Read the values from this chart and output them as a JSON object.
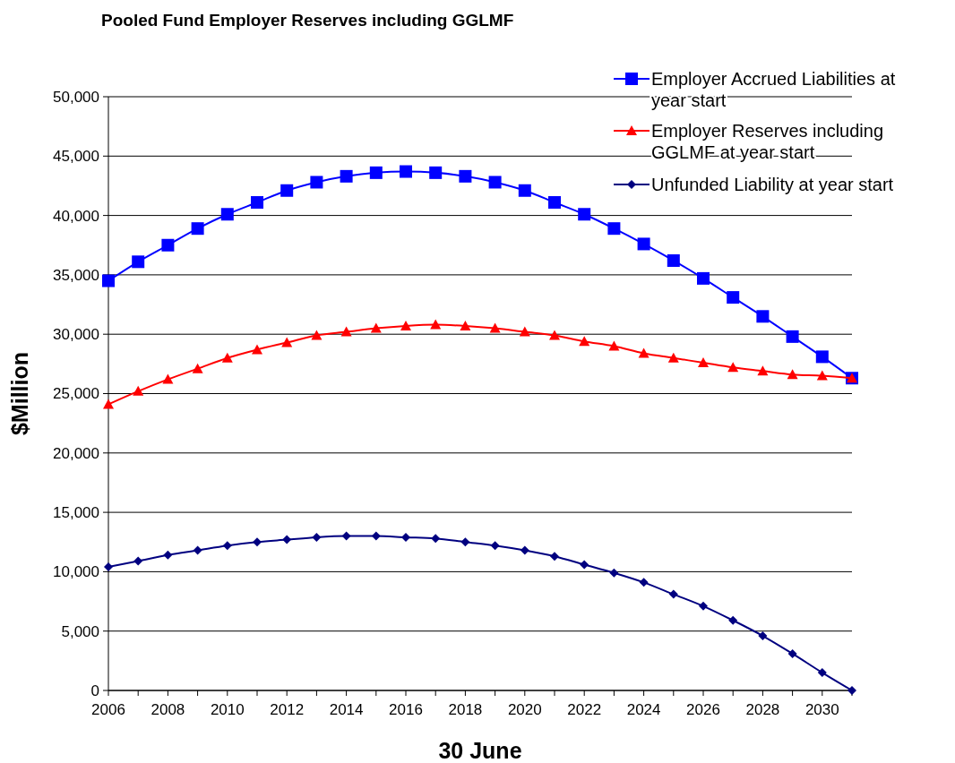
{
  "chart_data": {
    "type": "line",
    "title": "Pooled Fund Employer Reserves including GGLMF",
    "xlabel": "30 June",
    "ylabel": "$Million",
    "x": [
      2006,
      2007,
      2008,
      2009,
      2010,
      2011,
      2012,
      2013,
      2014,
      2015,
      2016,
      2017,
      2018,
      2019,
      2020,
      2021,
      2022,
      2023,
      2024,
      2025,
      2026,
      2027,
      2028,
      2029,
      2030,
      2031
    ],
    "series": [
      {
        "name": "Employer Accrued Liabilities at year start",
        "color": "#0000ff",
        "marker": "square",
        "values": [
          34500,
          36100,
          37500,
          38900,
          40100,
          41100,
          42100,
          42800,
          43300,
          43600,
          43700,
          43600,
          43300,
          42800,
          42100,
          41100,
          40100,
          38900,
          37600,
          36200,
          34700,
          33100,
          31500,
          29800,
          28100,
          26300
        ]
      },
      {
        "name": "Employer Reserves including GGLMF at year start",
        "color": "#ff0000",
        "marker": "triangle",
        "values": [
          24100,
          25200,
          26200,
          27100,
          28000,
          28700,
          29300,
          29900,
          30200,
          30500,
          30700,
          30800,
          30700,
          30500,
          30200,
          29900,
          29400,
          29000,
          28400,
          28000,
          27600,
          27200,
          26900,
          26600,
          26500,
          26300
        ]
      },
      {
        "name": "Unfunded Liability at year start",
        "color": "#000080",
        "marker": "diamond",
        "values": [
          10400,
          10900,
          11400,
          11800,
          12200,
          12500,
          12700,
          12900,
          13000,
          13000,
          12900,
          12800,
          12500,
          12200,
          11800,
          11300,
          10600,
          9900,
          9100,
          8100,
          7100,
          5900,
          4600,
          3100,
          1500,
          0
        ]
      }
    ],
    "xlim": [
      2006,
      2031
    ],
    "xticks": [
      2006,
      {
        "value": 2007,
        "label": null
      },
      2008,
      {
        "value": 2009,
        "label": null
      },
      2010,
      {
        "value": 2011,
        "label": null
      },
      2012,
      {
        "value": 2013,
        "label": null
      },
      2014,
      {
        "value": 2015,
        "label": null
      },
      2016,
      {
        "value": 2017,
        "label": null
      },
      2018,
      {
        "value": 2019,
        "label": null
      },
      2020,
      {
        "value": 2021,
        "label": null
      },
      2022,
      {
        "value": 2023,
        "label": null
      },
      2024,
      {
        "value": 2025,
        "label": null
      },
      2026,
      {
        "value": 2027,
        "label": null
      },
      2028,
      {
        "value": 2029,
        "label": null
      },
      2030,
      {
        "value": 2031,
        "label": null
      }
    ],
    "ylim": [
      0,
      50000
    ],
    "yticks": [
      {
        "value": 0,
        "label": "0"
      },
      {
        "value": 5000,
        "label": "5,000"
      },
      {
        "value": 10000,
        "label": "10,000"
      },
      {
        "value": 15000,
        "label": "15,000"
      },
      {
        "value": 20000,
        "label": "20,000"
      },
      {
        "value": 25000,
        "label": "25,000"
      },
      {
        "value": 30000,
        "label": "30,000"
      },
      {
        "value": 35000,
        "label": "35,000"
      },
      {
        "value": 40000,
        "label": "40,000"
      },
      {
        "value": 45000,
        "label": "45,000"
      },
      {
        "value": 50000,
        "label": "50,000"
      }
    ],
    "grid": "y",
    "legend": "top right"
  }
}
